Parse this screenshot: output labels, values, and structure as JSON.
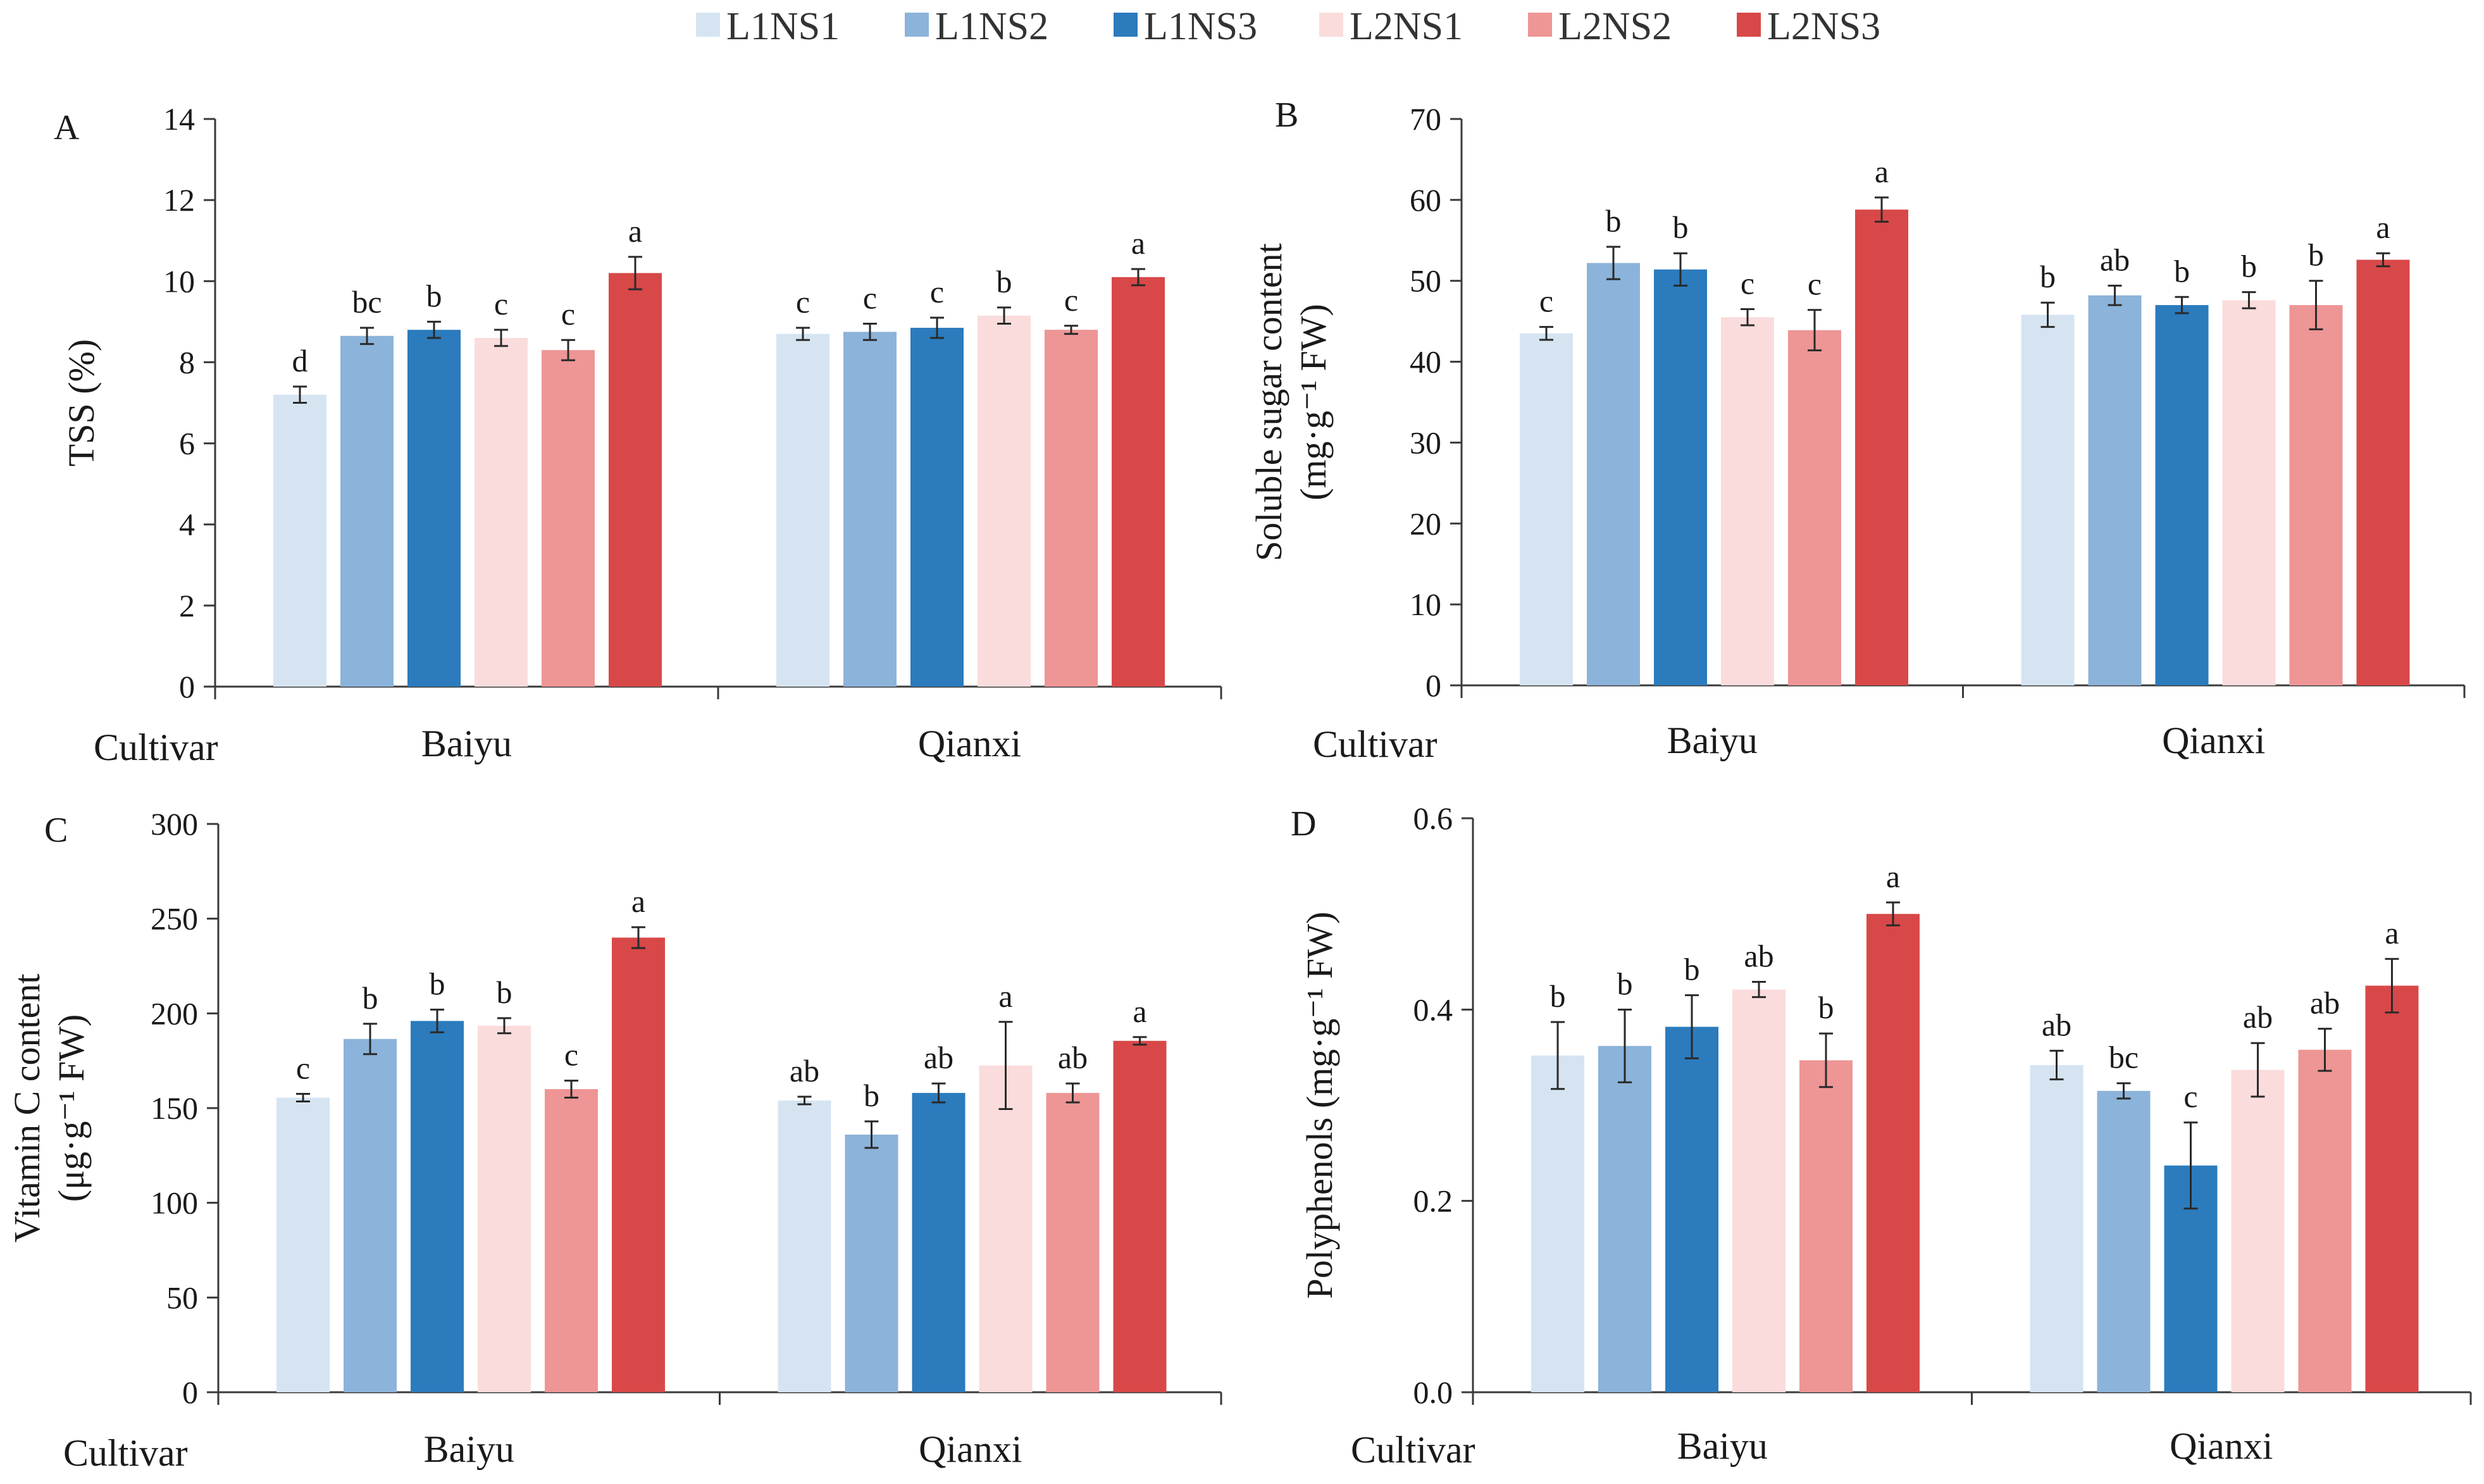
{
  "legend": [
    {
      "name": "L1NS1",
      "color": "#d6e4f2"
    },
    {
      "name": "L1NS2",
      "color": "#8cb3d9"
    },
    {
      "name": "L1NS3",
      "color": "#2b7bbd"
    },
    {
      "name": "L2NS1",
      "color": "#fadcdc"
    },
    {
      "name": "L2NS2",
      "color": "#ee9595"
    },
    {
      "name": "L2NS3",
      "color": "#d84848"
    }
  ],
  "x_title": "Cultivar",
  "chart_data": [
    {
      "type": "bar",
      "panel": "A",
      "ylabel": "TSS (%)",
      "ylim": [
        0,
        14
      ],
      "yticks": [
        0,
        2,
        4,
        6,
        8,
        10,
        12,
        14
      ],
      "tick_labels": [
        "0",
        "2",
        "4",
        "6",
        "8",
        "10",
        "12",
        "14"
      ],
      "categories": [
        "Baiyu",
        "Qianxi"
      ],
      "series": [
        {
          "name": "L1NS1",
          "values": [
            7.2,
            8.7
          ],
          "errors": [
            0.2,
            0.15
          ],
          "letters": [
            "d",
            "c"
          ]
        },
        {
          "name": "L1NS2",
          "values": [
            8.65,
            8.75
          ],
          "errors": [
            0.2,
            0.2
          ],
          "letters": [
            "bc",
            "c"
          ]
        },
        {
          "name": "L1NS3",
          "values": [
            8.8,
            8.85
          ],
          "errors": [
            0.2,
            0.25
          ],
          "letters": [
            "b",
            "c"
          ]
        },
        {
          "name": "L2NS1",
          "values": [
            8.6,
            9.15
          ],
          "errors": [
            0.2,
            0.2
          ],
          "letters": [
            "c",
            "b"
          ]
        },
        {
          "name": "L2NS2",
          "values": [
            8.3,
            8.8
          ],
          "errors": [
            0.25,
            0.1
          ],
          "letters": [
            "c",
            "c"
          ]
        },
        {
          "name": "L2NS3",
          "values": [
            10.2,
            10.1
          ],
          "errors": [
            0.4,
            0.2
          ],
          "letters": [
            "a",
            "a"
          ]
        }
      ]
    },
    {
      "type": "bar",
      "panel": "B",
      "ylabel": "Soluble sugar content",
      "ylabel_unit": "(mg·g⁻¹ FW)",
      "ylim": [
        0,
        70
      ],
      "yticks": [
        0,
        10,
        20,
        30,
        40,
        50,
        60,
        70
      ],
      "tick_labels": [
        "0",
        "10",
        "20",
        "30",
        "40",
        "50",
        "60",
        "70"
      ],
      "categories": [
        "Baiyu",
        "Qianxi"
      ],
      "series": [
        {
          "name": "L1NS1",
          "values": [
            43.5,
            45.8
          ],
          "errors": [
            0.8,
            1.5
          ],
          "letters": [
            "c",
            "b"
          ]
        },
        {
          "name": "L1NS2",
          "values": [
            52.2,
            48.2
          ],
          "errors": [
            2.0,
            1.2
          ],
          "letters": [
            "b",
            "ab"
          ]
        },
        {
          "name": "L1NS3",
          "values": [
            51.4,
            47.0
          ],
          "errors": [
            2.0,
            1.0
          ],
          "letters": [
            "b",
            "b"
          ]
        },
        {
          "name": "L2NS1",
          "values": [
            45.5,
            47.6
          ],
          "errors": [
            1.0,
            1.0
          ],
          "letters": [
            "c",
            "b"
          ]
        },
        {
          "name": "L2NS2",
          "values": [
            43.9,
            47.0
          ],
          "errors": [
            2.5,
            3.0
          ],
          "letters": [
            "c",
            "b"
          ]
        },
        {
          "name": "L2NS3",
          "values": [
            58.8,
            52.6
          ],
          "errors": [
            1.5,
            0.8
          ],
          "letters": [
            "a",
            "a"
          ]
        }
      ]
    },
    {
      "type": "bar",
      "panel": "C",
      "ylabel": "Vitamin C content",
      "ylabel_unit": "(μg·g⁻¹ FW)",
      "ylim": [
        0,
        300
      ],
      "yticks": [
        0,
        50,
        100,
        150,
        200,
        250,
        300
      ],
      "tick_labels": [
        "0",
        "50",
        "100",
        "150",
        "200",
        "250",
        "300"
      ],
      "categories": [
        "Baiyu",
        "Qianxi"
      ],
      "series": [
        {
          "name": "L1NS1",
          "values": [
            155.5,
            154.0
          ],
          "errors": [
            2.0,
            2.0
          ],
          "letters": [
            "c",
            "ab"
          ]
        },
        {
          "name": "L1NS2",
          "values": [
            186.5,
            136.0
          ],
          "errors": [
            8.0,
            7.0
          ],
          "letters": [
            "b",
            "b"
          ]
        },
        {
          "name": "L1NS3",
          "values": [
            196.0,
            158.0
          ],
          "errors": [
            6.0,
            5.0
          ],
          "letters": [
            "b",
            "ab"
          ]
        },
        {
          "name": "L2NS1",
          "values": [
            193.5,
            172.5
          ],
          "errors": [
            4.0,
            23.0
          ],
          "letters": [
            "b",
            "a"
          ]
        },
        {
          "name": "L2NS2",
          "values": [
            160.0,
            158.0
          ],
          "errors": [
            4.5,
            5.0
          ],
          "letters": [
            "c",
            "ab"
          ]
        },
        {
          "name": "L2NS3",
          "values": [
            240.0,
            185.5
          ],
          "errors": [
            5.5,
            2.0
          ],
          "letters": [
            "a",
            "a"
          ]
        }
      ]
    },
    {
      "type": "bar",
      "panel": "D",
      "ylabel": "Polyphenols (mg·g⁻¹ FW)",
      "ylim": [
        0,
        0.6
      ],
      "yticks": [
        0,
        0.2,
        0.4,
        0.6
      ],
      "tick_labels": [
        "0.0",
        "0.2",
        "0.4",
        "0.6"
      ],
      "categories": [
        "Baiyu",
        "Qianxi"
      ],
      "series": [
        {
          "name": "L1NS1",
          "values": [
            0.352,
            0.342
          ],
          "errors": [
            0.035,
            0.015
          ],
          "letters": [
            "b",
            "ab"
          ]
        },
        {
          "name": "L1NS2",
          "values": [
            0.362,
            0.315
          ],
          "errors": [
            0.038,
            0.008
          ],
          "letters": [
            "b",
            "bc"
          ]
        },
        {
          "name": "L1NS3",
          "values": [
            0.382,
            0.237
          ],
          "errors": [
            0.033,
            0.045
          ],
          "letters": [
            "b",
            "c"
          ]
        },
        {
          "name": "L2NS1",
          "values": [
            0.421,
            0.337
          ],
          "errors": [
            0.008,
            0.028
          ],
          "letters": [
            "ab",
            "ab"
          ]
        },
        {
          "name": "L2NS2",
          "values": [
            0.347,
            0.358
          ],
          "errors": [
            0.028,
            0.022
          ],
          "letters": [
            "b",
            "ab"
          ]
        },
        {
          "name": "L2NS3",
          "values": [
            0.5,
            0.425
          ],
          "errors": [
            0.012,
            0.028
          ],
          "letters": [
            "a",
            "a"
          ]
        }
      ]
    }
  ]
}
